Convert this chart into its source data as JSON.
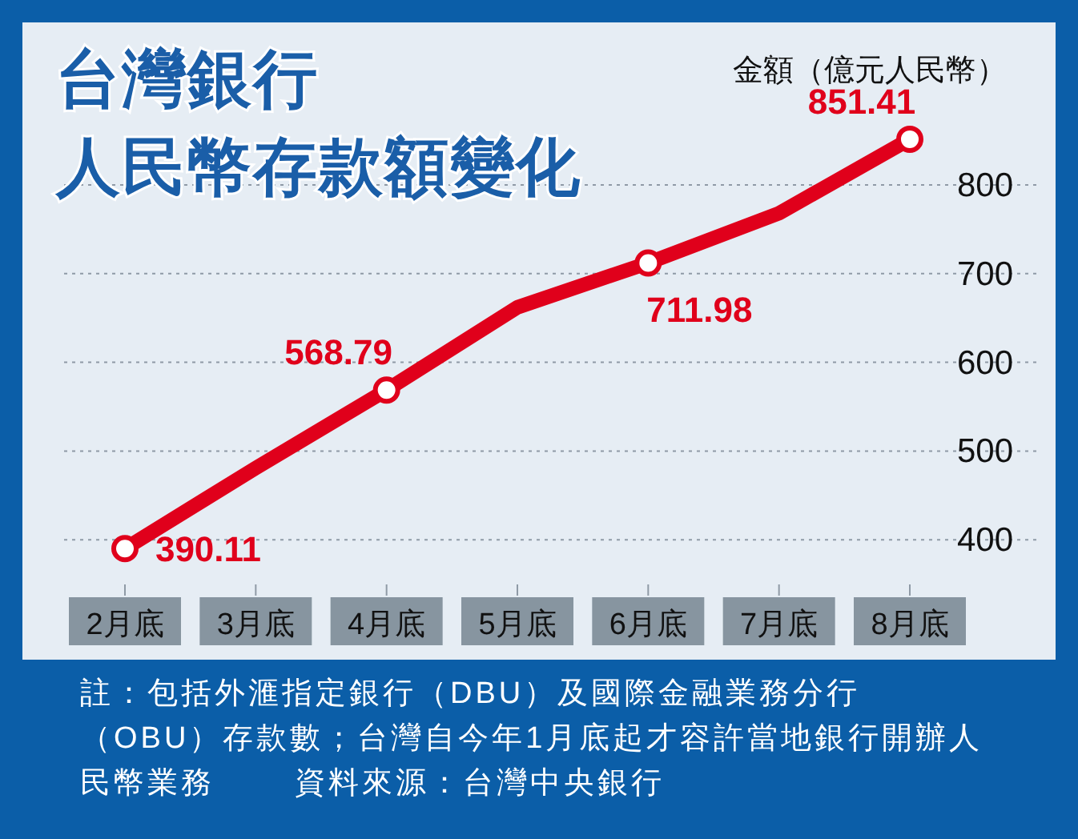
{
  "chart_data": {
    "type": "line",
    "title": "台灣銀行",
    "subtitle": "人民幣存款額變化",
    "ylabel": "金額（億元人民幣）",
    "categories": [
      "2月底",
      "3月底",
      "4月底",
      "5月底",
      "6月底",
      "7月底",
      "8月底"
    ],
    "series": [
      {
        "color": "#e0001b",
        "values": [
          390.11,
          481,
          568.79,
          662,
          711.98,
          768,
          851.41
        ],
        "value_labels": [
          "390.11",
          null,
          "568.79",
          null,
          "711.98",
          null,
          "851.41"
        ]
      }
    ],
    "ylim": [
      265,
      983
    ],
    "yticks": [
      400,
      500,
      600,
      700,
      800
    ],
    "grid": "y",
    "marker": "circle",
    "line_style": "solid",
    "annotations": [
      "註：包括外滙指定銀行（DBU）及國際金融業務分行（OBU）存款數；台灣自今年1月底起才容許當地銀行開辦人民幣業務",
      "資料來源：台灣中央銀行"
    ]
  }
}
